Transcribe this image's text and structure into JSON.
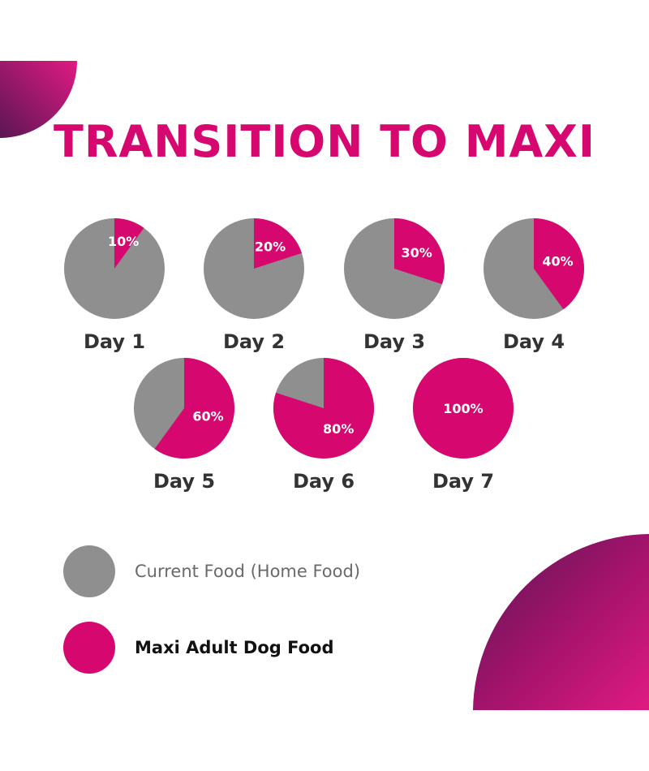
{
  "colors": {
    "current_food": "#8f8f8f",
    "maxi_food": "#d6076f",
    "title": "#d6076f",
    "label_text": "#333333",
    "percent_text": "#ffffff",
    "decor_gradient": [
      "#5a1654",
      "#a0136a",
      "#e01a82"
    ]
  },
  "title": "TRANSITION TO MAXI",
  "chart_data": {
    "type": "pie",
    "title": "TRANSITION TO MAXI",
    "slice_names": [
      "Maxi Adult Dog Food",
      "Current Food (Home Food)"
    ],
    "days": [
      {
        "label": "Day 1",
        "maxi_percent": 10,
        "percent_text": "10%"
      },
      {
        "label": "Day 2",
        "maxi_percent": 20,
        "percent_text": "20%"
      },
      {
        "label": "Day 3",
        "maxi_percent": 30,
        "percent_text": "30%"
      },
      {
        "label": "Day 4",
        "maxi_percent": 40,
        "percent_text": "40%"
      },
      {
        "label": "Day 5",
        "maxi_percent": 60,
        "percent_text": "60%"
      },
      {
        "label": "Day 6",
        "maxi_percent": 80,
        "percent_text": "80%"
      },
      {
        "label": "Day 7",
        "maxi_percent": 100,
        "percent_text": "100%"
      }
    ]
  },
  "legend": {
    "current_label": "Current Food (Home Food)",
    "maxi_label": "Maxi Adult Dog Food"
  }
}
